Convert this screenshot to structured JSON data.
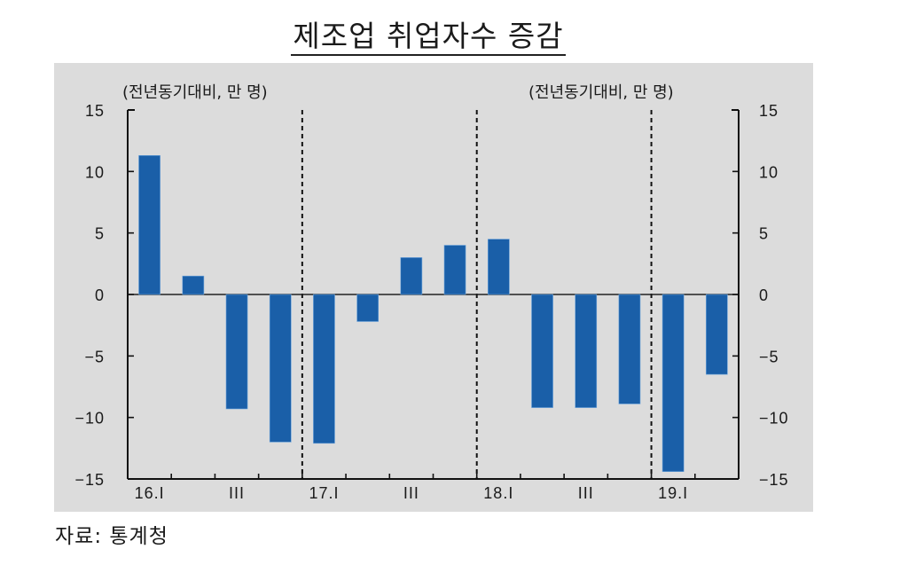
{
  "chart_data": {
    "type": "bar",
    "title": "제조업 취업자수 증감",
    "unit_label_left": "(전년동기대비, 만 명)",
    "unit_label_right": "(전년동기대비, 만 명)",
    "ylabel": "",
    "xlabel": "",
    "ylim": [
      -15,
      15
    ],
    "yticks": [
      15,
      10,
      5,
      0,
      -5,
      -10,
      -15
    ],
    "ytick_labels": [
      "15",
      "10",
      "5",
      "0",
      "−5",
      "−10",
      "−15"
    ],
    "categories": [
      "16.I",
      "16.II",
      "16.III",
      "16.IV",
      "17.I",
      "17.II",
      "17.III",
      "17.IV",
      "18.I",
      "18.II",
      "18.III",
      "18.IV",
      "19.I",
      "19.II"
    ],
    "values": [
      11.3,
      1.5,
      -9.3,
      -12.0,
      -12.1,
      -2.2,
      3.0,
      4.0,
      4.5,
      -9.2,
      -9.2,
      -8.9,
      -14.4,
      -6.5
    ],
    "xtick_labels": [
      {
        "label": "16.I",
        "index": 0
      },
      {
        "label": "III",
        "index": 2
      },
      {
        "label": "17.I",
        "index": 4
      },
      {
        "label": "III",
        "index": 6
      },
      {
        "label": "18.I",
        "index": 8
      },
      {
        "label": "III",
        "index": 10
      },
      {
        "label": "19.I",
        "index": 12
      }
    ],
    "year_dividers_before_index": [
      4,
      8,
      12
    ],
    "grid": false,
    "bar_color": "#1a5fa8",
    "background_color": "#dcdcdc"
  },
  "source": "자료:  통계청"
}
